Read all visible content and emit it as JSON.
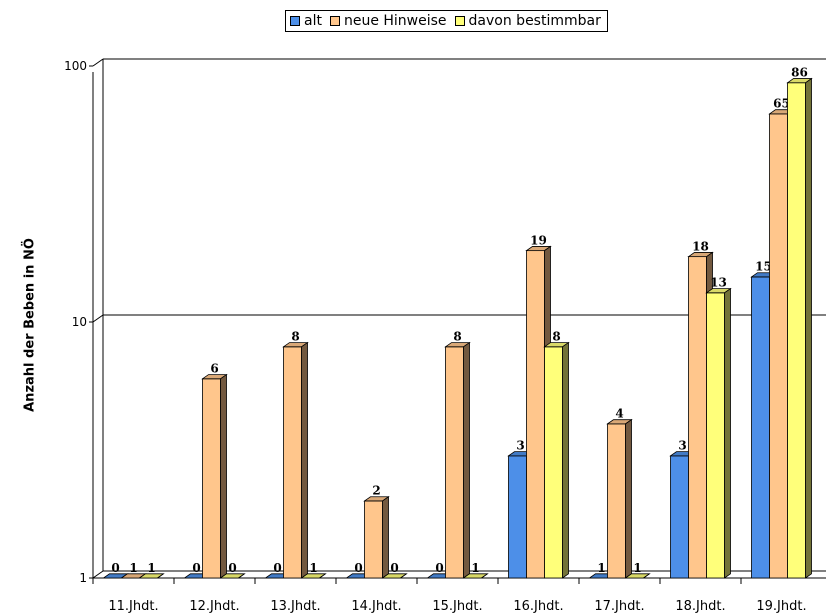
{
  "chart_data": {
    "type": "bar",
    "ylabel": "Anzahl der Beben in NÖ",
    "xlabel": "",
    "title": "",
    "yscale": "log",
    "ylim": [
      1,
      100
    ],
    "yticks": [
      "1",
      "10",
      "100"
    ],
    "legend_position": "top",
    "categories": [
      "11.Jhdt.",
      "12.Jhdt.",
      "13.Jhdt.",
      "14.Jhdt.",
      "15.Jhdt.",
      "16.Jhdt.",
      "17.Jhdt.",
      "18.Jhdt.",
      "19.Jhdt."
    ],
    "series": [
      {
        "name": "alt",
        "color": "#4d8fe8",
        "values": [
          0,
          0,
          0,
          0,
          0,
          3,
          1,
          3,
          15
        ]
      },
      {
        "name": "neue Hinweise",
        "color": "#ffc68c",
        "values": [
          1,
          6,
          8,
          2,
          8,
          19,
          4,
          18,
          65
        ]
      },
      {
        "name": "davon bestimmbar",
        "color": "#ffff7a",
        "values": [
          1,
          0,
          1,
          0,
          1,
          8,
          1,
          13,
          86
        ]
      }
    ]
  }
}
